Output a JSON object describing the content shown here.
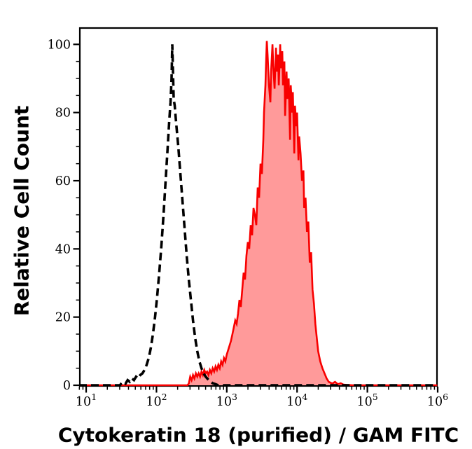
{
  "figure": {
    "background_color": "#ffffff",
    "frame_color": "#000000"
  },
  "chart_data": {
    "type": "area",
    "subtype": "flow-cytometry-histogram-overlay",
    "title": "",
    "xlabel": "Cytokeratin 18 (purified) / GAM FITC",
    "ylabel": "Relative Cell Count",
    "x_scale": "log10",
    "xlim_log10": [
      0.9,
      6.0
    ],
    "ylim": [
      0,
      105
    ],
    "grid": false,
    "legend": null,
    "x_axis": {
      "tick_base": "10",
      "decade_exponents": [
        1,
        2,
        3,
        4,
        5,
        6
      ],
      "minor_ticks": "multiples 2-9 of each decade"
    },
    "y_axis": {
      "major_ticks": [
        0,
        20,
        40,
        60,
        80,
        100
      ],
      "minor_tick_step": 5
    },
    "series": [
      {
        "name": "red-filled-sample",
        "line_style": "solid",
        "color": "#f80000",
        "fill": "#ff9a9a",
        "peak": {
          "x": 5000,
          "y": 100
        },
        "points_log10x_y": [
          [
            0.9,
            0
          ],
          [
            2.44,
            0
          ],
          [
            2.46,
            0.5
          ],
          [
            2.48,
            2.5
          ],
          [
            2.5,
            1.5
          ],
          [
            2.52,
            3
          ],
          [
            2.54,
            2
          ],
          [
            2.56,
            3.5
          ],
          [
            2.58,
            2.5
          ],
          [
            2.6,
            3.5
          ],
          [
            2.62,
            2.5
          ],
          [
            2.64,
            4
          ],
          [
            2.66,
            3
          ],
          [
            2.68,
            4.5
          ],
          [
            2.7,
            3.5
          ],
          [
            2.72,
            4
          ],
          [
            2.74,
            3
          ],
          [
            2.76,
            4.5
          ],
          [
            2.78,
            3.5
          ],
          [
            2.8,
            5
          ],
          [
            2.82,
            4
          ],
          [
            2.84,
            5.5
          ],
          [
            2.86,
            4.5
          ],
          [
            2.88,
            6
          ],
          [
            2.9,
            5
          ],
          [
            2.92,
            7
          ],
          [
            2.94,
            6
          ],
          [
            2.96,
            8
          ],
          [
            2.98,
            7
          ],
          [
            3.0,
            9
          ],
          [
            3.03,
            11
          ],
          [
            3.06,
            13
          ],
          [
            3.08,
            15
          ],
          [
            3.1,
            17
          ],
          [
            3.12,
            19
          ],
          [
            3.14,
            18
          ],
          [
            3.16,
            21
          ],
          [
            3.18,
            25
          ],
          [
            3.2,
            23
          ],
          [
            3.22,
            28
          ],
          [
            3.24,
            33
          ],
          [
            3.26,
            31
          ],
          [
            3.28,
            38
          ],
          [
            3.3,
            42
          ],
          [
            3.32,
            40
          ],
          [
            3.34,
            47
          ],
          [
            3.36,
            44
          ],
          [
            3.38,
            52
          ],
          [
            3.4,
            50
          ],
          [
            3.42,
            47
          ],
          [
            3.44,
            58
          ],
          [
            3.46,
            55
          ],
          [
            3.48,
            65
          ],
          [
            3.5,
            62
          ],
          [
            3.52,
            72
          ],
          [
            3.53,
            80
          ],
          [
            3.55,
            88
          ],
          [
            3.56,
            95
          ],
          [
            3.57,
            101
          ],
          [
            3.58,
            97
          ],
          [
            3.6,
            88
          ],
          [
            3.62,
            83
          ],
          [
            3.63,
            92
          ],
          [
            3.65,
            100
          ],
          [
            3.66,
            94
          ],
          [
            3.68,
            87
          ],
          [
            3.7,
            99
          ],
          [
            3.71,
            92
          ],
          [
            3.73,
            97
          ],
          [
            3.74,
            88
          ],
          [
            3.76,
            100
          ],
          [
            3.77,
            93
          ],
          [
            3.79,
            98
          ],
          [
            3.8,
            88
          ],
          [
            3.82,
            95
          ],
          [
            3.83,
            79
          ],
          [
            3.85,
            92
          ],
          [
            3.86,
            84
          ],
          [
            3.88,
            90
          ],
          [
            3.9,
            72
          ],
          [
            3.91,
            88
          ],
          [
            3.93,
            80
          ],
          [
            3.94,
            86
          ],
          [
            3.96,
            68
          ],
          [
            3.97,
            82
          ],
          [
            3.99,
            76
          ],
          [
            4.0,
            80
          ],
          [
            4.02,
            66
          ],
          [
            4.03,
            73
          ],
          [
            4.05,
            68
          ],
          [
            4.07,
            60
          ],
          [
            4.09,
            63
          ],
          [
            4.1,
            52
          ],
          [
            4.12,
            55
          ],
          [
            4.14,
            45
          ],
          [
            4.16,
            48
          ],
          [
            4.18,
            36
          ],
          [
            4.2,
            39
          ],
          [
            4.22,
            28
          ],
          [
            4.24,
            24
          ],
          [
            4.26,
            18
          ],
          [
            4.28,
            14
          ],
          [
            4.3,
            10
          ],
          [
            4.33,
            7
          ],
          [
            4.36,
            5
          ],
          [
            4.39,
            3.5
          ],
          [
            4.42,
            2
          ],
          [
            4.45,
            1
          ],
          [
            4.5,
            0.5
          ],
          [
            4.54,
            1
          ],
          [
            4.58,
            0.3
          ],
          [
            4.62,
            0.6
          ],
          [
            4.66,
            0.2
          ],
          [
            4.72,
            0.1
          ],
          [
            4.8,
            0
          ],
          [
            6.0,
            0
          ]
        ]
      },
      {
        "name": "black-dashed-control",
        "line_style": "dashed",
        "color": "#000000",
        "fill": "none",
        "peak": {
          "x": 170,
          "y": 100
        },
        "points_log10x_y": [
          [
            0.9,
            0
          ],
          [
            1.48,
            0
          ],
          [
            1.5,
            0.5
          ],
          [
            1.53,
            1
          ],
          [
            1.56,
            0.5
          ],
          [
            1.59,
            1.5
          ],
          [
            1.62,
            1
          ],
          [
            1.65,
            2
          ],
          [
            1.68,
            1.5
          ],
          [
            1.71,
            2.5
          ],
          [
            1.74,
            2
          ],
          [
            1.77,
            3
          ],
          [
            1.8,
            3.5
          ],
          [
            1.83,
            4.5
          ],
          [
            1.86,
            6
          ],
          [
            1.89,
            8
          ],
          [
            1.92,
            11
          ],
          [
            1.95,
            15
          ],
          [
            1.98,
            20
          ],
          [
            2.01,
            26
          ],
          [
            2.04,
            33
          ],
          [
            2.07,
            41
          ],
          [
            2.1,
            50
          ],
          [
            2.13,
            60
          ],
          [
            2.16,
            70
          ],
          [
            2.18,
            77
          ],
          [
            2.2,
            83
          ],
          [
            2.215,
            90
          ],
          [
            2.225,
            100
          ],
          [
            2.235,
            92
          ],
          [
            2.245,
            84
          ],
          [
            2.26,
            82
          ],
          [
            2.28,
            77
          ],
          [
            2.31,
            70
          ],
          [
            2.34,
            62
          ],
          [
            2.37,
            54
          ],
          [
            2.4,
            46
          ],
          [
            2.43,
            38
          ],
          [
            2.46,
            31
          ],
          [
            2.49,
            25
          ],
          [
            2.52,
            19
          ],
          [
            2.55,
            14
          ],
          [
            2.58,
            10
          ],
          [
            2.61,
            7
          ],
          [
            2.64,
            5
          ],
          [
            2.67,
            3.5
          ],
          [
            2.7,
            2.5
          ],
          [
            2.73,
            1.8
          ],
          [
            2.76,
            1.2
          ],
          [
            2.8,
            0.6
          ],
          [
            2.84,
            0.3
          ],
          [
            2.88,
            0
          ],
          [
            6.0,
            0
          ]
        ]
      }
    ]
  }
}
